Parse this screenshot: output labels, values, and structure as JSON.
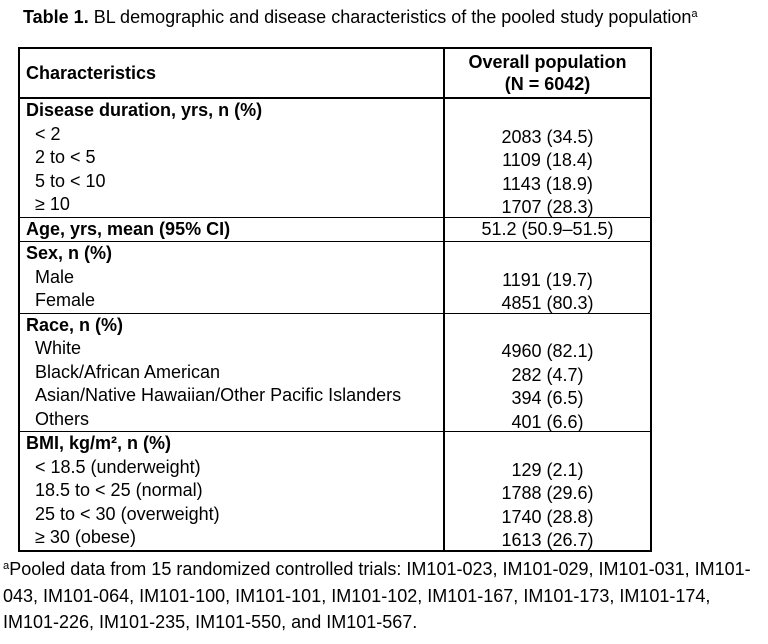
{
  "colors": {
    "text": "#000000",
    "background": "#ffffff",
    "border": "#000000"
  },
  "title": {
    "label": "Table 1.",
    "text": " BL demographic and disease characteristics of the pooled study population",
    "superscript": "a"
  },
  "table": {
    "columns": {
      "characteristics": "Characteristics",
      "overall_line1": "Overall population",
      "overall_line2": "(N = 6042)"
    },
    "sections": [
      {
        "header": "Disease duration, yrs, n (%)",
        "rows": [
          {
            "label": "< 2",
            "value": "2083 (34.5)"
          },
          {
            "label": "2 to < 5",
            "value": "1109 (18.4)"
          },
          {
            "label": "5 to < 10",
            "value": "1143 (18.9)"
          },
          {
            "label": "≥ 10",
            "value": "1707 (28.3)"
          }
        ]
      },
      {
        "header": "Age, yrs, mean (95% CI)",
        "value": "51.2 (50.9–51.5)",
        "rows": []
      },
      {
        "header": "Sex, n (%)",
        "rows": [
          {
            "label": "Male",
            "value": "1191 (19.7)"
          },
          {
            "label": "Female",
            "value": "4851 (80.3)"
          }
        ]
      },
      {
        "header": "Race, n (%)",
        "rows": [
          {
            "label": "White",
            "value": "4960 (82.1)"
          },
          {
            "label": "Black/African American",
            "value": "282 (4.7)"
          },
          {
            "label": "Asian/Native Hawaiian/Other Pacific Islanders",
            "value": "394 (6.5)"
          },
          {
            "label": "Others",
            "value": "401 (6.6)"
          }
        ]
      },
      {
        "header": "BMI, kg/m², n (%)",
        "rows": [
          {
            "label": "< 18.5 (underweight)",
            "value": "129 (2.1)"
          },
          {
            "label": "18.5 to < 25 (normal)",
            "value": "1788 (29.6)"
          },
          {
            "label": "25 to < 30 (overweight)",
            "value": "1740 (28.8)"
          },
          {
            "label": "≥ 30 (obese)",
            "value": "1613 (26.7)"
          }
        ]
      }
    ]
  },
  "footnote": {
    "superscript": "a",
    "lines": [
      "Pooled data from 15 randomized controlled trials: IM101-023, IM101-029, IM101-031, IM101-",
      "043, IM101-064, IM101-100, IM101-101, IM101-102, IM101-167, IM101-173, IM101-174,",
      "IM101-226, IM101-235, IM101-550, and IM101-567."
    ]
  }
}
